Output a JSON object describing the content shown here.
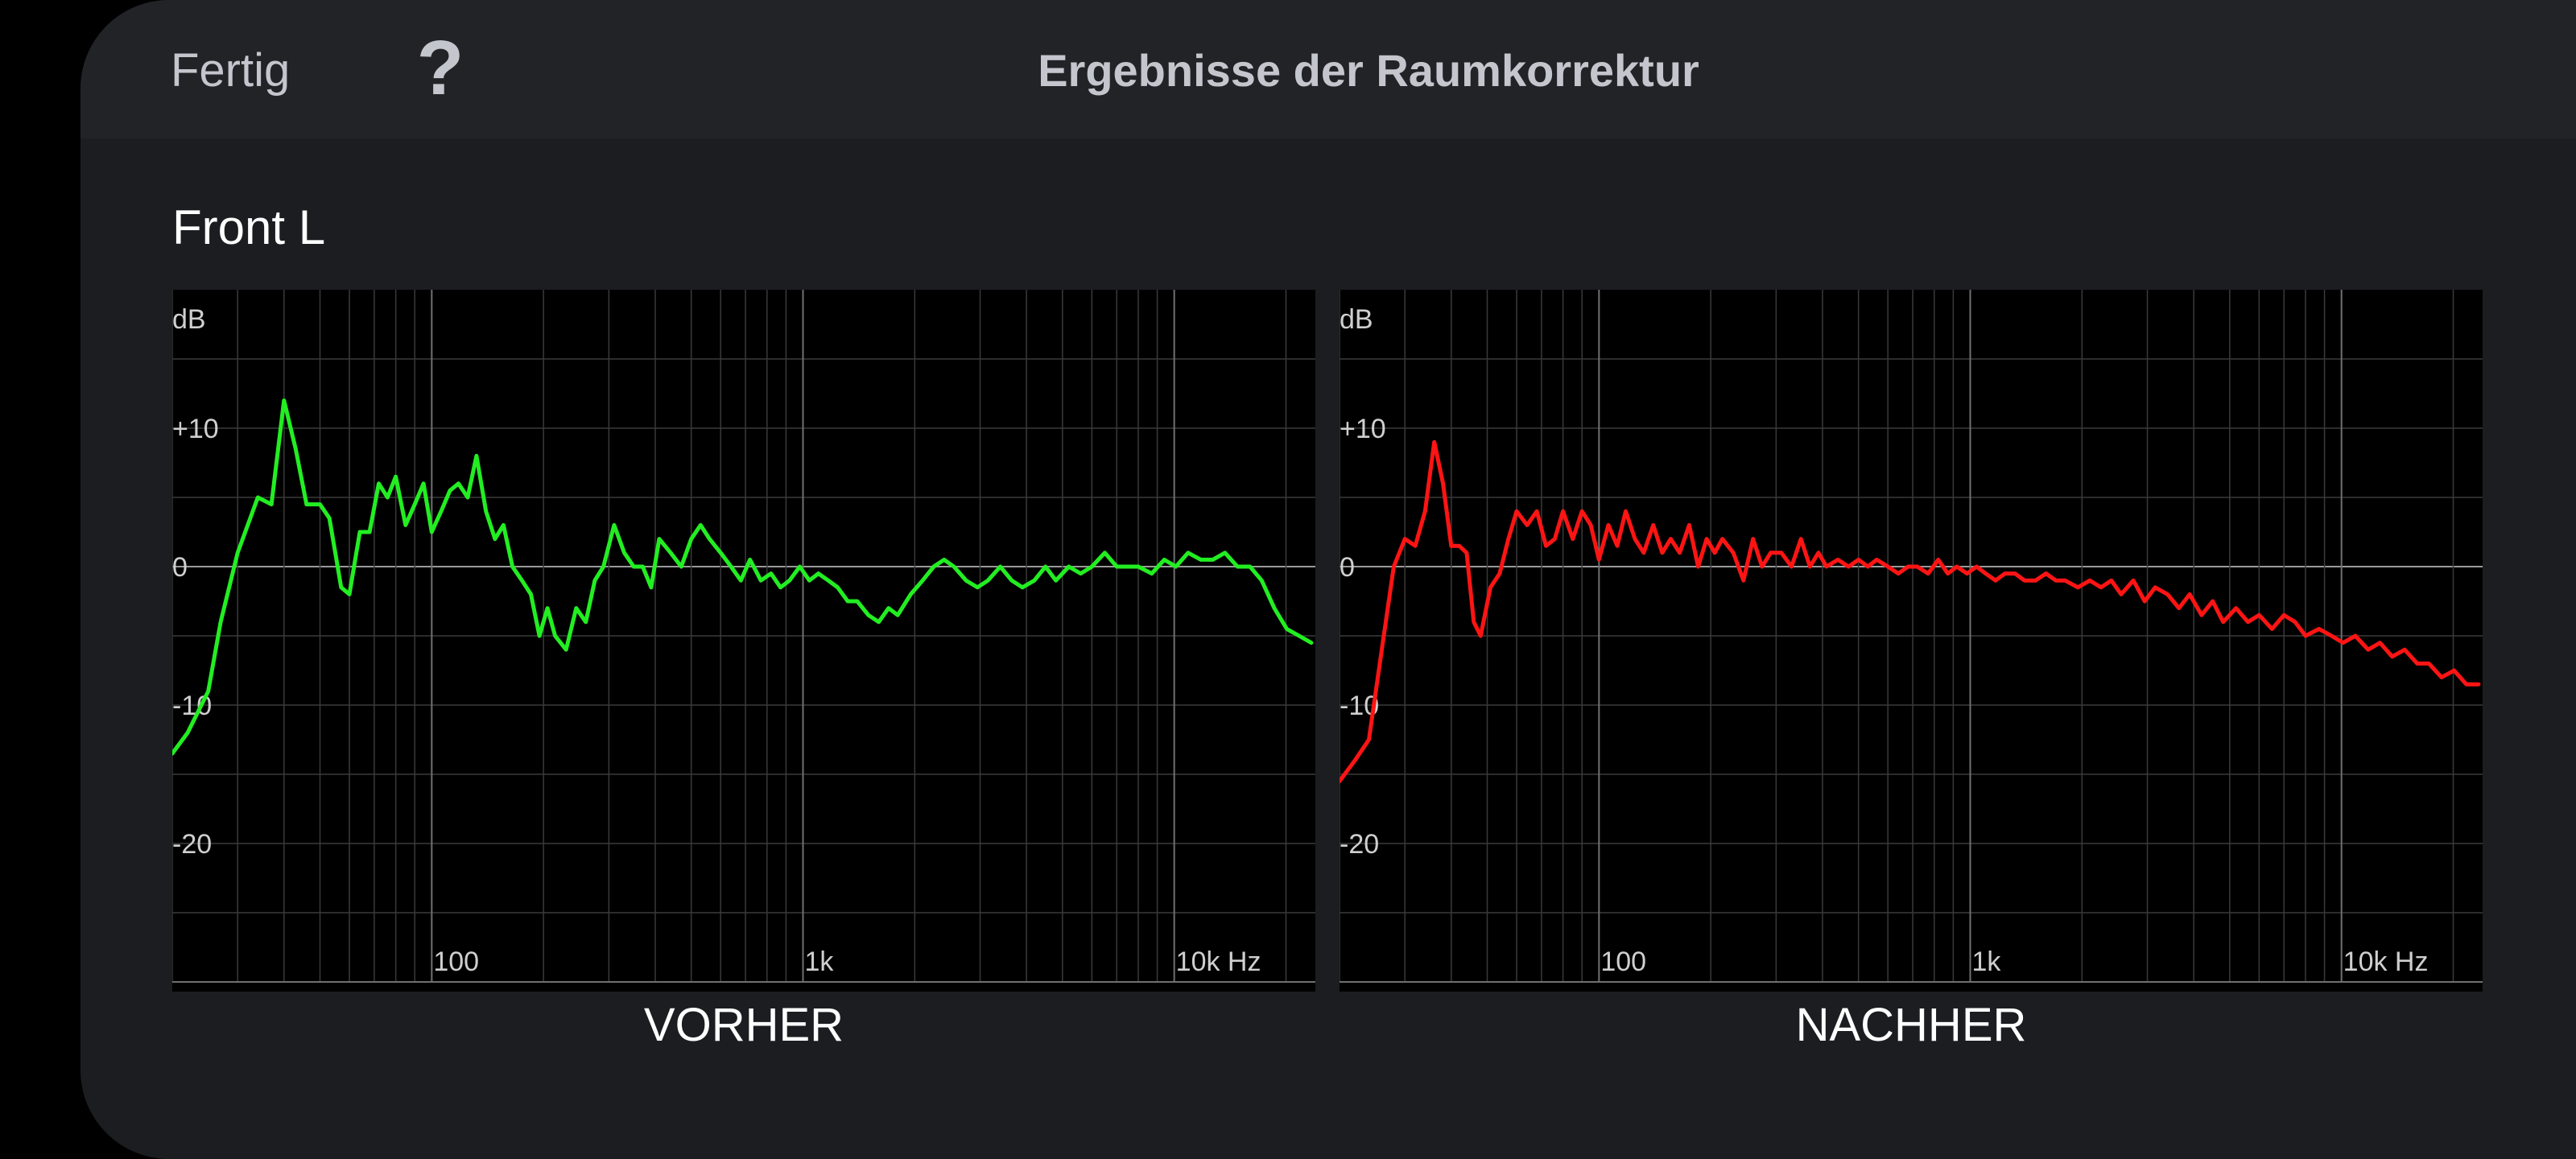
{
  "header": {
    "done_label": "Fertig",
    "help_icon": "?",
    "title": "Ergebnisse der Raumkorrektur"
  },
  "channel": {
    "name": "Front L"
  },
  "colors": {
    "before_line": "#22ee22",
    "after_line": "#ff1414",
    "grid": "#3a3a3a",
    "grid_major": "#707070",
    "zero_line": "#9a9a9a"
  },
  "chart_data": [
    {
      "type": "line",
      "title": "VORHER",
      "ylabel": "dB",
      "xscale": "log",
      "xlim": [
        20,
        24000
      ],
      "ylim": [
        -30,
        20
      ],
      "y_tick_labels": [
        "+10",
        "0",
        "-10",
        "-20"
      ],
      "y_ticks": [
        10,
        0,
        -10,
        -20
      ],
      "x_tick_labels": [
        "100",
        "1k",
        "10k Hz"
      ],
      "x_ticks": [
        100,
        1000,
        10000
      ],
      "grid": true,
      "series": [
        {
          "color": "#22ee22",
          "x": [
            20,
            22,
            25,
            27,
            30,
            34,
            37,
            40,
            43,
            46,
            50,
            53,
            57,
            60,
            64,
            68,
            72,
            76,
            80,
            85,
            90,
            95,
            100,
            106,
            112,
            118,
            125,
            132,
            140,
            148,
            156,
            165,
            175,
            185,
            195,
            205,
            215,
            230,
            245,
            260,
            275,
            290,
            310,
            330,
            350,
            370,
            390,
            410,
            440,
            470,
            500,
            530,
            560,
            600,
            640,
            680,
            720,
            770,
            820,
            870,
            920,
            980,
            1040,
            1100,
            1170,
            1240,
            1320,
            1400,
            1500,
            1600,
            1700,
            1800,
            1950,
            2100,
            2250,
            2400,
            2550,
            2750,
            2950,
            3150,
            3400,
            3650,
            3900,
            4200,
            4500,
            4800,
            5200,
            5600,
            6000,
            6500,
            7000,
            7500,
            8000,
            8700,
            9400,
            10100,
            10900,
            11800,
            12700,
            13700,
            14800,
            16000,
            17200,
            18600,
            20100,
            21700,
            23400
          ],
          "y": [
            -13.5,
            -12,
            -9,
            -4,
            1,
            5,
            4.5,
            12,
            8.5,
            4.5,
            4.5,
            3.5,
            -1.5,
            -2,
            2.5,
            2.5,
            6,
            5,
            6.5,
            3,
            4.5,
            6,
            2.5,
            4,
            5.5,
            6,
            5,
            8,
            4,
            2,
            3,
            0,
            -1,
            -2,
            -5,
            -3,
            -5,
            -6,
            -3,
            -4,
            -1,
            0,
            3,
            1,
            0,
            0,
            -1.5,
            2,
            1,
            0,
            2,
            3,
            2,
            1,
            0,
            -1,
            0.5,
            -1,
            -0.5,
            -1.5,
            -1,
            0,
            -1,
            -0.5,
            -1,
            -1.5,
            -2.5,
            -2.5,
            -3.5,
            -4,
            -3,
            -3.5,
            -2,
            -1,
            0,
            0.5,
            0,
            -1,
            -1.5,
            -1,
            0,
            -1,
            -1.5,
            -1,
            0,
            -1,
            0,
            -0.5,
            0,
            1,
            0,
            0,
            0,
            -0.5,
            0.5,
            0,
            1,
            0.5,
            0.5,
            1,
            0,
            0,
            -1,
            -3,
            -4.5,
            -5,
            -5.5
          ]
        }
      ]
    },
    {
      "type": "line",
      "title": "NACHHER",
      "ylabel": "dB",
      "xscale": "log",
      "xlim": [
        20,
        24000
      ],
      "ylim": [
        -30,
        20
      ],
      "y_tick_labels": [
        "+10",
        "0",
        "-10",
        "-20"
      ],
      "y_ticks": [
        10,
        0,
        -10,
        -20
      ],
      "x_tick_labels": [
        "100",
        "1k",
        "10k Hz"
      ],
      "x_ticks": [
        100,
        1000,
        10000
      ],
      "grid": true,
      "series": [
        {
          "color": "#ff1414",
          "x": [
            20,
            22,
            24,
            26,
            28,
            30,
            32,
            34,
            36,
            38,
            40,
            42,
            44,
            46,
            48,
            51,
            54,
            57,
            60,
            64,
            68,
            72,
            76,
            80,
            85,
            90,
            95,
            100,
            106,
            112,
            118,
            125,
            132,
            140,
            148,
            156,
            165,
            175,
            185,
            195,
            205,
            215,
            230,
            245,
            260,
            275,
            290,
            310,
            330,
            350,
            370,
            390,
            410,
            440,
            470,
            500,
            530,
            560,
            600,
            640,
            680,
            720,
            770,
            820,
            870,
            920,
            980,
            1040,
            1100,
            1170,
            1240,
            1320,
            1400,
            1500,
            1600,
            1700,
            1800,
            1950,
            2100,
            2250,
            2400,
            2550,
            2750,
            2950,
            3150,
            3400,
            3650,
            3900,
            4200,
            4500,
            4800,
            5200,
            5600,
            6000,
            6500,
            7000,
            7500,
            8000,
            8700,
            9400,
            10100,
            10900,
            11800,
            12700,
            13700,
            14800,
            16000,
            17200,
            18600,
            20100,
            21700,
            23400
          ],
          "y": [
            -15.5,
            -14,
            -12.5,
            -6,
            0,
            2,
            1.5,
            4,
            9,
            6,
            1.5,
            1.5,
            1,
            -4,
            -5,
            -1.5,
            -0.5,
            2,
            4,
            3,
            4,
            1.5,
            2,
            4,
            2,
            4,
            3,
            0.5,
            3,
            1.5,
            4,
            2,
            1,
            3,
            1,
            2,
            1,
            3,
            0,
            2,
            1,
            2,
            1,
            -1,
            2,
            0,
            1,
            1,
            0,
            2,
            0,
            1,
            0,
            0.5,
            0,
            0.5,
            0,
            0.5,
            0,
            -0.5,
            0,
            0,
            -0.5,
            0.5,
            -0.5,
            0,
            -0.5,
            0,
            -0.5,
            -1,
            -0.5,
            -0.5,
            -1,
            -1,
            -0.5,
            -1,
            -1,
            -1.5,
            -1,
            -1.5,
            -1,
            -2,
            -1,
            -2.5,
            -1.5,
            -2,
            -3,
            -2,
            -3.5,
            -2.5,
            -4,
            -3,
            -4,
            -3.5,
            -4.5,
            -3.5,
            -4,
            -5,
            -4.5,
            -5,
            -5.5,
            -5,
            -6,
            -5.5,
            -6.5,
            -6,
            -7,
            -7,
            -8,
            -7.5,
            -8.5,
            -8.5
          ]
        }
      ]
    }
  ]
}
